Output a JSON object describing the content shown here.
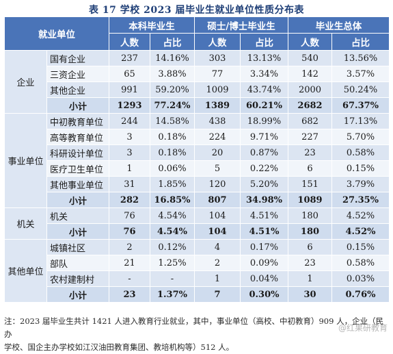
{
  "title": "表 17 学校 2023 届毕业生就业单位性质分布表",
  "header": {
    "unit_col": "就业单位",
    "groups": [
      "本科毕业生",
      "硕士/博士毕业生",
      "毕业生总体"
    ],
    "sub": [
      "人数",
      "占比",
      "人数",
      "占比",
      "人数",
      "占比"
    ]
  },
  "categories": [
    {
      "name": "企业",
      "rows": [
        {
          "label": "国有企业",
          "values": [
            "237",
            "14.16%",
            "303",
            "13.13%",
            "540",
            "13.56%"
          ]
        },
        {
          "label": "三资企业",
          "values": [
            "65",
            "3.88%",
            "77",
            "3.34%",
            "142",
            "3.57%"
          ]
        },
        {
          "label": "其他企业",
          "values": [
            "991",
            "59.20%",
            "1009",
            "43.74%",
            "2000",
            "50.24%"
          ]
        },
        {
          "label": "小计",
          "total": true,
          "values": [
            "1293",
            "77.24%",
            "1389",
            "60.21%",
            "2682",
            "67.37%"
          ]
        }
      ]
    },
    {
      "name": "事业单位",
      "rows": [
        {
          "label": "中初教育单位",
          "values": [
            "244",
            "14.58%",
            "438",
            "18.99%",
            "682",
            "17.13%"
          ]
        },
        {
          "label": "高等教育单位",
          "values": [
            "3",
            "0.18%",
            "224",
            "9.71%",
            "227",
            "5.70%"
          ]
        },
        {
          "label": "科研设计单位",
          "values": [
            "3",
            "0.18%",
            "20",
            "0.87%",
            "23",
            "0.58%"
          ]
        },
        {
          "label": "医疗卫生单位",
          "values": [
            "1",
            "0.06%",
            "5",
            "0.22%",
            "6",
            "0.15%"
          ]
        },
        {
          "label": "其他事业单位",
          "values": [
            "31",
            "1.85%",
            "120",
            "5.20%",
            "151",
            "3.79%"
          ]
        },
        {
          "label": "小计",
          "total": true,
          "values": [
            "282",
            "16.85%",
            "807",
            "34.98%",
            "1089",
            "27.35%"
          ]
        }
      ]
    },
    {
      "name": "机关",
      "rows": [
        {
          "label": "机关",
          "values": [
            "76",
            "4.54%",
            "104",
            "4.51%",
            "180",
            "4.52%"
          ]
        },
        {
          "label": "小计",
          "total": true,
          "values": [
            "76",
            "4.54%",
            "104",
            "4.51%",
            "180",
            "4.52%"
          ]
        }
      ]
    },
    {
      "name": "其他单位",
      "rows": [
        {
          "label": "城镇社区",
          "values": [
            "2",
            "0.12%",
            "4",
            "0.17%",
            "6",
            "0.15%"
          ]
        },
        {
          "label": "部队",
          "values": [
            "21",
            "1.25%",
            "2",
            "0.09%",
            "23",
            "0.58%"
          ]
        },
        {
          "label": "农村建制村",
          "values": [
            "-",
            "-",
            "1",
            "0.04%",
            "1",
            "0.03%"
          ]
        },
        {
          "label": "小计",
          "total": true,
          "values": [
            "23",
            "1.37%",
            "7",
            "0.30%",
            "30",
            "0.76%"
          ]
        }
      ]
    }
  ],
  "note": {
    "text_before": "注：2023 届毕业生共计 1421 人进入教育行业就业，其中，事业单位（高校、中初教育）909 人，企业（民办",
    "text_line2": "学校、国企主办学校如江汉油田教育集团、教培机构等）512 人。"
  },
  "watermark": "@红果研教育"
}
